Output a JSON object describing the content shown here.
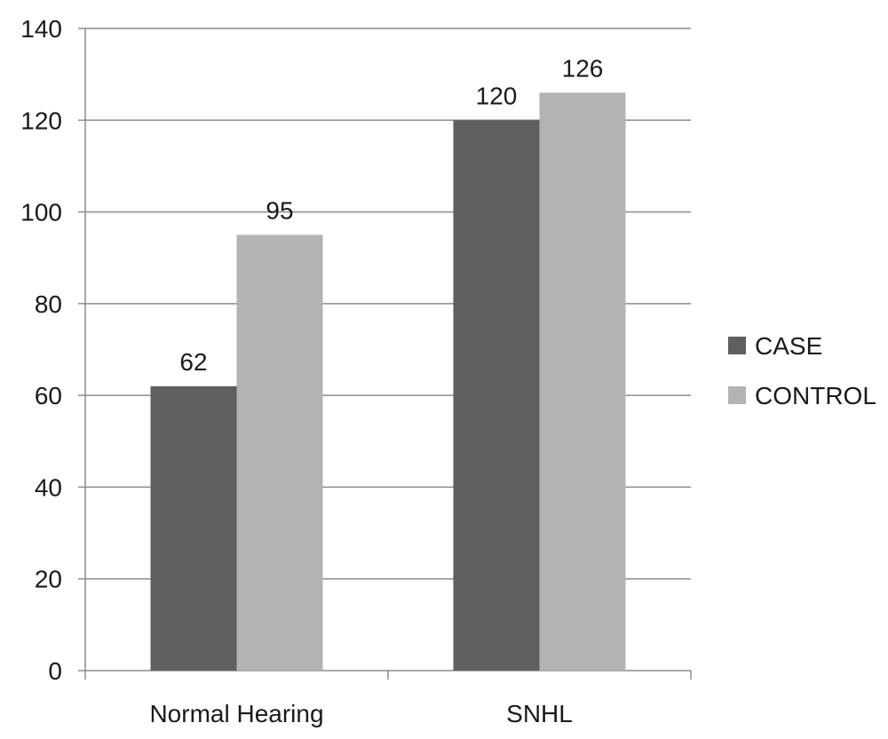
{
  "chart_data": {
    "type": "bar",
    "title": "",
    "xlabel": "",
    "ylabel": "",
    "categories": [
      "Normal Hearing",
      "SNHL"
    ],
    "series": [
      {
        "name": "CASE",
        "values": [
          62,
          120
        ],
        "color": "#5f5f5f"
      },
      {
        "name": "CONTROL",
        "values": [
          95,
          126
        ],
        "color": "#b3b3b3"
      }
    ],
    "ylim": [
      0,
      140
    ],
    "yticks": [
      0,
      20,
      40,
      60,
      80,
      100,
      120,
      140
    ],
    "ytick_labels": [
      "0",
      "20",
      "40",
      "60",
      "80",
      "100",
      "120",
      "140"
    ],
    "grid": true,
    "gridline_color": "#8c8c8c",
    "axis_color": "#8c8c8c",
    "data_labels": true,
    "legend": "right"
  }
}
